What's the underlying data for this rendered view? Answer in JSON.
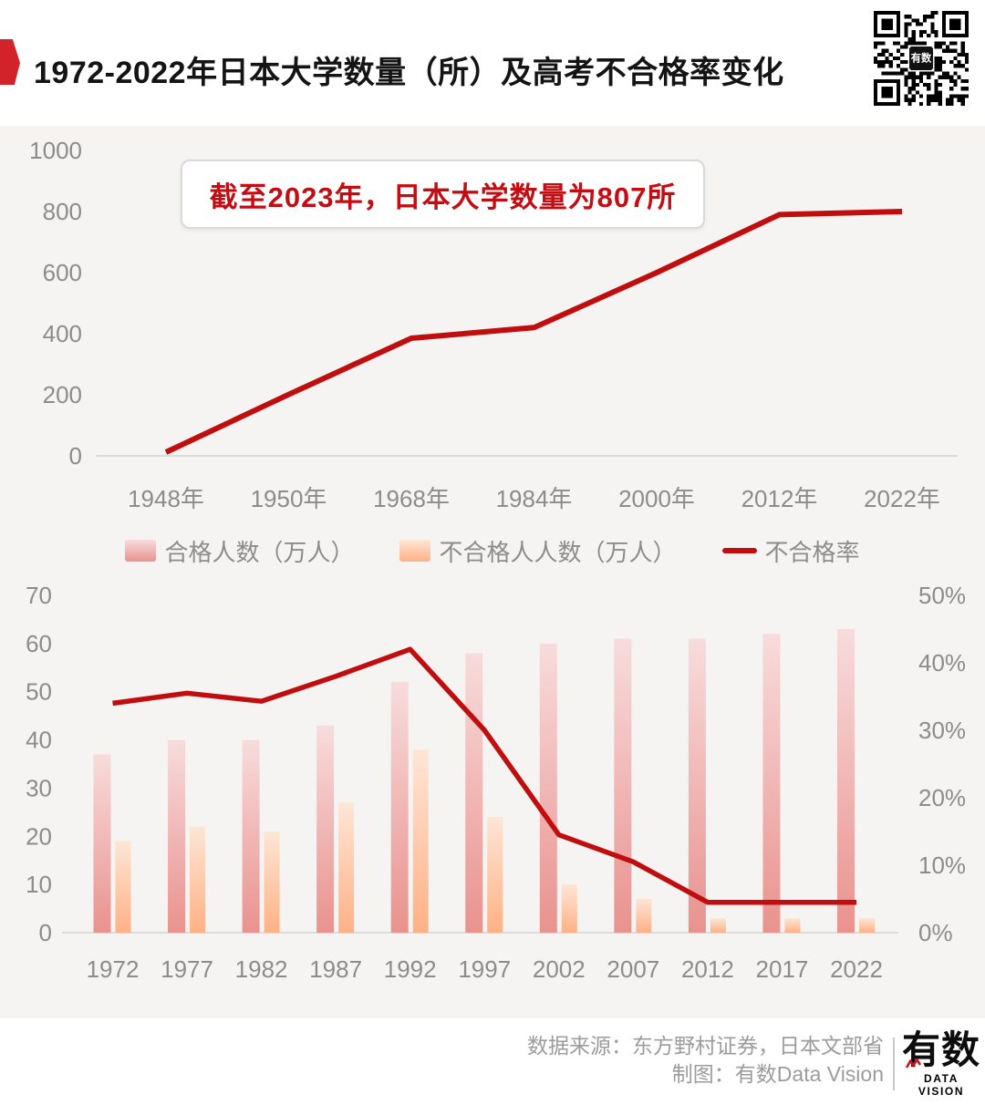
{
  "header": {
    "title": "1972-2022年日本大学数量（所）及高考不合格率变化",
    "qr_center_label": "有数"
  },
  "colors": {
    "page_background": "#ffffff",
    "chart_background": "#f5f4f2",
    "ribbon_red": "#d2232a",
    "line_red": "#c00d0e",
    "annotation_red": "#c40d12",
    "axis_text_gray": "#8c8c8c",
    "axis_line_gray": "#dcdcdc",
    "bar_pink_top": "#f7dcdc",
    "bar_pink_bottom": "#e9928e",
    "bar_orange_top": "#fde6d6",
    "bar_orange_bottom": "#ffb185",
    "footer_text_gray": "#9c9c9c"
  },
  "chart_data": [
    {
      "type": "line",
      "x": [
        "1948年",
        "1950年",
        "1968年",
        "1984年",
        "2000年",
        "2012年",
        "2022年"
      ],
      "values": [
        12,
        201,
        385,
        420,
        600,
        790,
        800
      ],
      "ylim": [
        0,
        1000
      ],
      "yticks": [
        0,
        200,
        400,
        600,
        800,
        1000
      ],
      "grid": false,
      "legend": false,
      "line_color": "#c00d0e",
      "annotation": "截至2023年，日本大学数量为807所"
    },
    {
      "type": "bar+line",
      "categories": [
        "1972",
        "1977",
        "1982",
        "1987",
        "1992",
        "1997",
        "2002",
        "2007",
        "2012",
        "2017",
        "2022"
      ],
      "series": [
        {
          "name": "合格人数（万人）",
          "type": "bar",
          "axis": "left",
          "values": [
            37,
            40,
            40,
            43,
            52,
            58,
            60,
            61,
            61,
            62,
            63
          ]
        },
        {
          "name": "不合格人人数（万人）",
          "type": "bar",
          "axis": "left",
          "values": [
            19,
            22,
            21,
            27,
            38,
            24,
            10,
            7,
            3,
            3,
            3
          ]
        },
        {
          "name": "不合格率",
          "type": "line",
          "axis": "right",
          "unit": "%",
          "values": [
            34,
            35.5,
            34.3,
            38,
            42,
            30,
            14.5,
            10.5,
            4.5,
            4.5,
            4.5
          ]
        }
      ],
      "left_ylim": [
        0,
        70
      ],
      "left_yticks": [
        0,
        10,
        20,
        30,
        40,
        50,
        60,
        70
      ],
      "right_ylim": [
        0,
        50
      ],
      "right_yticks": [
        "0%",
        "10%",
        "20%",
        "30%",
        "40%",
        "50%"
      ],
      "grid": false,
      "legend_position": "top"
    }
  ],
  "footer": {
    "source": "数据来源：东方野村证券，日本文部省",
    "credit": "制图：有数Data Vision",
    "logo_cn": "有数",
    "logo_en": "DATA VISION"
  }
}
